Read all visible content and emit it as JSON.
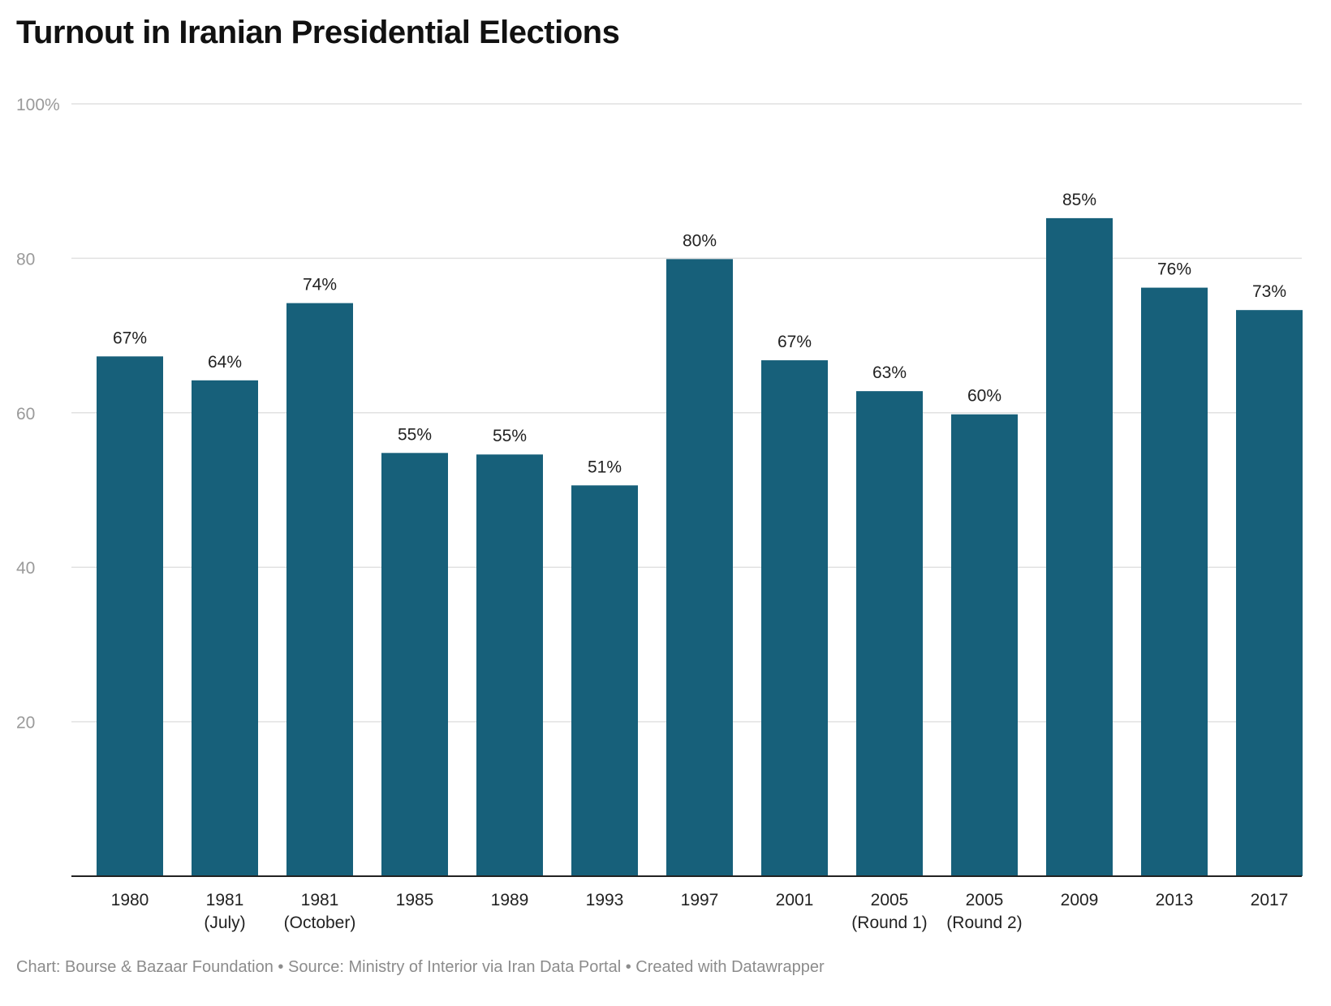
{
  "title": "Turnout in Iranian Presidential Elections",
  "footer": {
    "credit": "Chart: Bourse & Bazaar Foundation",
    "source": "Source: Ministry of Interior via Iran Data Portal",
    "created": "Created with Datawrapper",
    "separator": " • "
  },
  "colors": {
    "bar": "#17607a",
    "gridline": "#e1e1e1",
    "axis": "#222222"
  },
  "chart_data": {
    "type": "bar",
    "title": "Turnout in Iranian Presidential Elections",
    "xlabel": "",
    "ylabel": "",
    "ylim": [
      0,
      100
    ],
    "grid": true,
    "yticks": [
      20,
      40,
      60,
      80,
      100
    ],
    "ytick_labels": [
      "20",
      "40",
      "60",
      "80",
      "100%"
    ],
    "categories": [
      [
        "1980"
      ],
      [
        "1981",
        "(July)"
      ],
      [
        "1981",
        "(October)"
      ],
      [
        "1985"
      ],
      [
        "1989"
      ],
      [
        "1993"
      ],
      [
        "1997"
      ],
      [
        "2001"
      ],
      [
        "2005",
        "(Round 1)"
      ],
      [
        "2005",
        "(Round 2)"
      ],
      [
        "2009"
      ],
      [
        "2013"
      ],
      [
        "2017"
      ]
    ],
    "values": [
      67.3,
      64.2,
      74.2,
      54.8,
      54.6,
      50.6,
      79.9,
      66.8,
      62.8,
      59.8,
      85.2,
      76.2,
      73.3
    ],
    "value_labels": [
      "67%",
      "64%",
      "74%",
      "55%",
      "55%",
      "51%",
      "80%",
      "67%",
      "63%",
      "60%",
      "85%",
      "76%",
      "73%"
    ]
  }
}
